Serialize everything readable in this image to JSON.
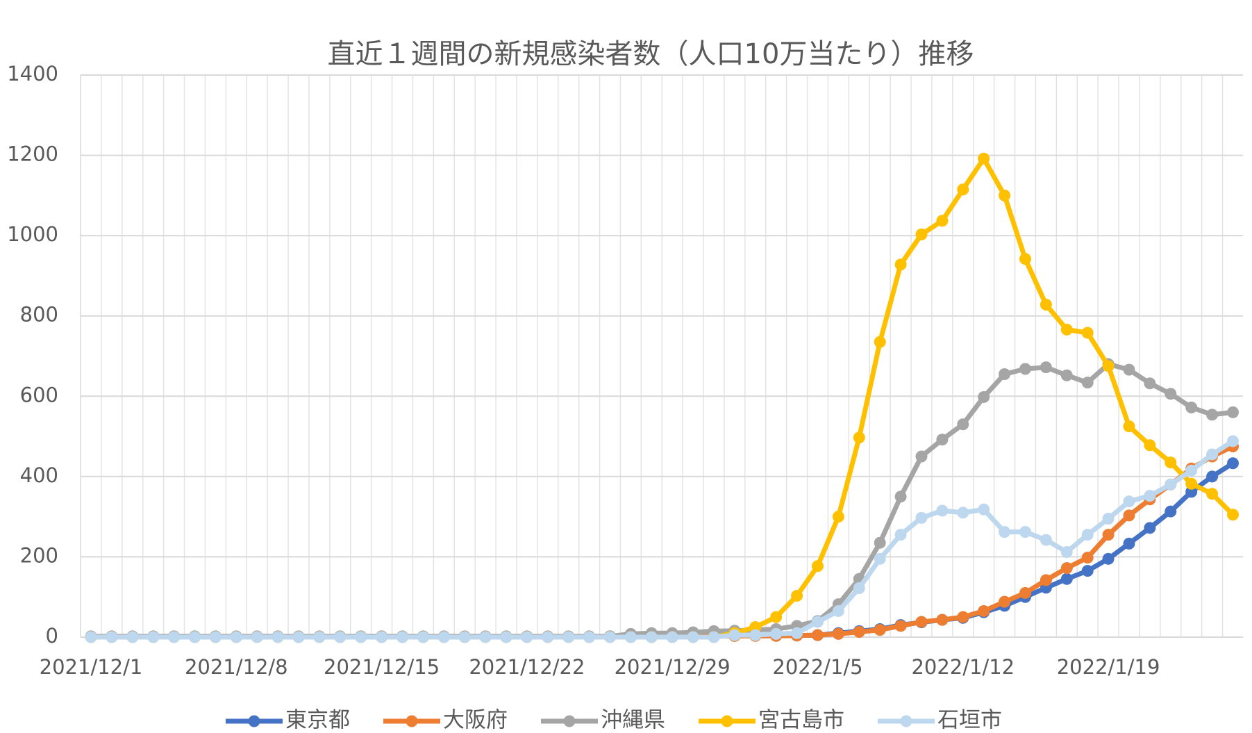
{
  "chart_data": {
    "type": "line",
    "title": "直近１週間の新規感染者数（人口10万当たり）推移",
    "categories": [
      "2021/12/1",
      null,
      null,
      null,
      null,
      null,
      null,
      "2021/12/8",
      null,
      null,
      null,
      null,
      null,
      null,
      "2021/12/15",
      null,
      null,
      null,
      null,
      null,
      null,
      "2021/12/22",
      null,
      null,
      null,
      null,
      null,
      null,
      "2021/12/29",
      null,
      null,
      null,
      null,
      null,
      null,
      "2022/1/5",
      null,
      null,
      null,
      null,
      null,
      null,
      "2022/1/12",
      null,
      null,
      null,
      null,
      null,
      null,
      "2022/1/19",
      null,
      null,
      null,
      null,
      null,
      null
    ],
    "ylim": [
      0,
      1400
    ],
    "yticks": [
      0,
      200,
      400,
      600,
      800,
      1000,
      1200,
      1400
    ],
    "grid": true,
    "legend": "bottom",
    "series": [
      {
        "name": "東京都",
        "color": "#4472c4",
        "values": [
          1,
          1,
          1,
          1,
          1,
          1,
          1,
          1,
          1,
          1,
          1,
          1,
          1,
          1,
          1,
          1,
          1,
          1,
          1,
          1,
          1,
          1,
          1,
          1,
          1,
          2,
          2,
          2,
          2,
          3,
          3,
          3,
          4,
          4,
          4,
          5,
          10,
          15,
          20,
          30,
          37,
          43,
          48,
          62,
          78,
          100,
          123,
          145,
          165,
          195,
          233,
          272,
          313,
          362,
          400,
          433
        ]
      },
      {
        "name": "大阪府",
        "color": "#ed7d31",
        "values": [
          1,
          1,
          1,
          1,
          1,
          1,
          1,
          1,
          1,
          1,
          1,
          1,
          1,
          1,
          1,
          1,
          1,
          1,
          1,
          1,
          1,
          1,
          1,
          1,
          1,
          1,
          1,
          2,
          2,
          2,
          2,
          3,
          3,
          3,
          4,
          5,
          8,
          13,
          18,
          28,
          38,
          43,
          50,
          65,
          88,
          110,
          142,
          172,
          198,
          255,
          303,
          343,
          380,
          420,
          450,
          475
        ]
      },
      {
        "name": "沖縄県",
        "color": "#a5a5a5",
        "values": [
          2,
          2,
          2,
          2,
          2,
          2,
          2,
          2,
          2,
          2,
          2,
          2,
          2,
          2,
          2,
          2,
          2,
          2,
          2,
          2,
          2,
          2,
          2,
          2,
          2,
          2,
          8,
          10,
          10,
          12,
          15,
          16,
          18,
          20,
          28,
          40,
          82,
          145,
          235,
          350,
          450,
          492,
          530,
          598,
          655,
          668,
          672,
          652,
          634,
          680,
          666,
          632,
          606,
          572,
          554,
          560
        ]
      },
      {
        "name": "宮古島市",
        "color": "#ffc000",
        "values": [
          0,
          0,
          0,
          0,
          0,
          0,
          0,
          0,
          0,
          0,
          0,
          0,
          0,
          0,
          0,
          0,
          0,
          0,
          0,
          0,
          0,
          0,
          0,
          0,
          0,
          0,
          0,
          0,
          0,
          0,
          0,
          10,
          25,
          50,
          103,
          177,
          300,
          497,
          735,
          928,
          1003,
          1037,
          1115,
          1192,
          1100,
          942,
          828,
          766,
          758,
          675,
          525,
          478,
          435,
          382,
          357,
          305
        ]
      },
      {
        "name": "石垣市",
        "color": "#bdd7ee",
        "values": [
          0,
          0,
          0,
          0,
          0,
          0,
          0,
          0,
          0,
          0,
          0,
          0,
          0,
          0,
          0,
          0,
          0,
          0,
          0,
          0,
          0,
          0,
          0,
          0,
          0,
          0,
          0,
          0,
          0,
          0,
          0,
          5,
          5,
          8,
          10,
          38,
          65,
          122,
          195,
          255,
          297,
          315,
          310,
          318,
          262,
          262,
          242,
          212,
          255,
          295,
          338,
          352,
          380,
          415,
          455,
          488
        ]
      }
    ]
  }
}
